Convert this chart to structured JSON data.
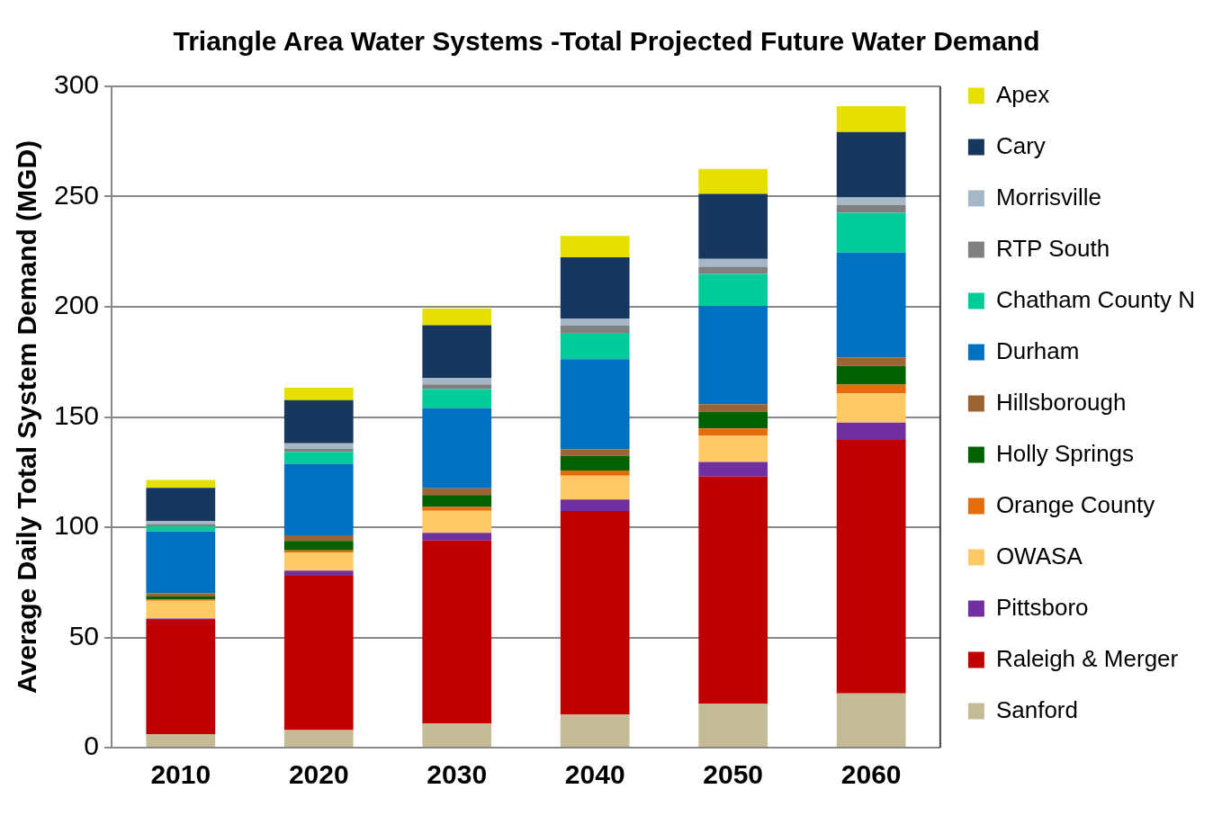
{
  "chart_data": {
    "type": "bar",
    "title": "Triangle Area Water Systems -Total Projected Future Water Demand",
    "ylabel": "Average Daily Total System Demand (MGD)",
    "categories": [
      "2010",
      "2020",
      "2030",
      "2040",
      "2050",
      "2060"
    ],
    "stacked": true,
    "ylim": [
      0,
      300
    ],
    "yticks": [
      0,
      50,
      100,
      150,
      200,
      250,
      300
    ],
    "grid": "y",
    "legend": "right",
    "series": [
      {
        "name": "Sanford",
        "color": "#c4bc96",
        "values": [
          6,
          8,
          11,
          15,
          20,
          24.6
        ]
      },
      {
        "name": "Raleigh & Merger",
        "color": "#c00000",
        "values": [
          52,
          70,
          83,
          92.3,
          103,
          115
        ]
      },
      {
        "name": "Pittsboro",
        "color": "#7030a0",
        "values": [
          0.6,
          2.3,
          3.5,
          5.3,
          6.6,
          7.9
        ]
      },
      {
        "name": "OWASA",
        "color": "#ffc966",
        "values": [
          8,
          8.3,
          10,
          10.8,
          11.9,
          13.2
        ]
      },
      {
        "name": "Orange County",
        "color": "#e46c0a",
        "values": [
          0.5,
          0.9,
          1.7,
          2.3,
          3.3,
          4
        ]
      },
      {
        "name": "Holly Springs",
        "color": "#006100",
        "values": [
          1.5,
          4.3,
          5.4,
          6.6,
          7.6,
          8.5
        ]
      },
      {
        "name": "Hillsborough",
        "color": "#9c6434",
        "values": [
          1.5,
          2.5,
          3.1,
          3.1,
          3.4,
          3.8
        ]
      },
      {
        "name": "Durham",
        "color": "#0070c0",
        "values": [
          28,
          32.5,
          36.3,
          40.8,
          44.6,
          47.6
        ]
      },
      {
        "name": "Chatham County N",
        "color": "#00cc99",
        "values": [
          2.3,
          5.4,
          8.7,
          12,
          14.5,
          18.1
        ]
      },
      {
        "name": "RTP South",
        "color": "#808080",
        "values": [
          1,
          1.4,
          2.1,
          3.2,
          3.3,
          3.5
        ]
      },
      {
        "name": "Morrisville",
        "color": "#a6b8c8",
        "values": [
          1.5,
          2.5,
          3,
          3.3,
          3.5,
          3.4
        ]
      },
      {
        "name": "Cary",
        "color": "#17375e",
        "values": [
          15,
          19.6,
          23.8,
          27.7,
          29.5,
          29.7
        ]
      },
      {
        "name": "Apex",
        "color": "#e6e000",
        "values": [
          3.5,
          5.6,
          7.6,
          9.7,
          11.4,
          11.7
        ]
      }
    ]
  }
}
